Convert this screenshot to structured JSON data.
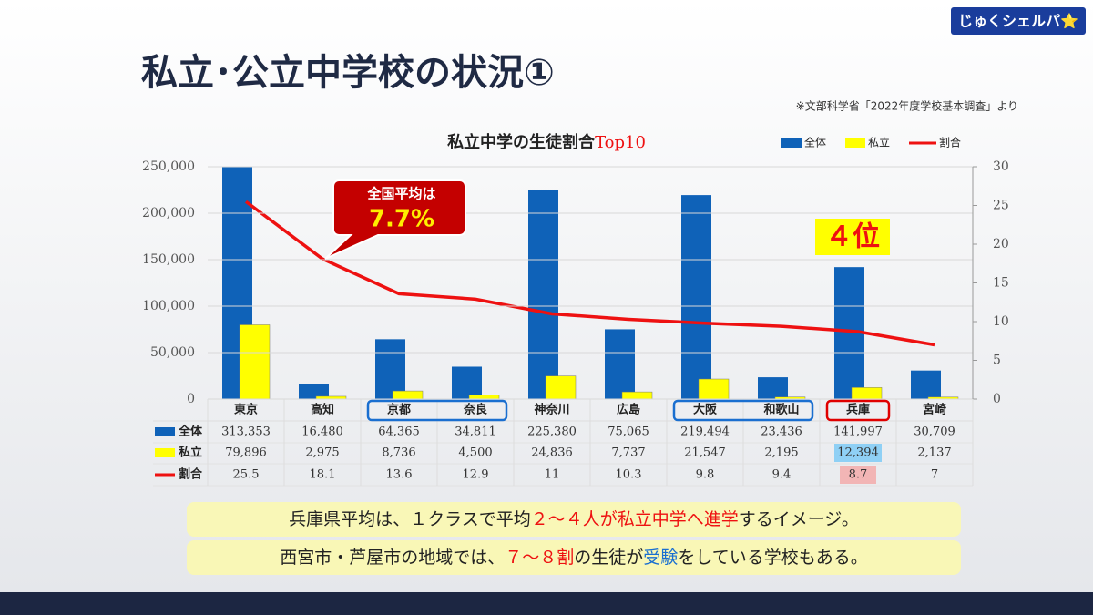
{
  "header": {
    "title": "私立･公立中学校の状況①",
    "logo": "じゅくシェルパ⭐",
    "source": "※文部科学省「2022年度学校基本調査」より"
  },
  "chart_data": {
    "type": "bar",
    "title": {
      "text": "私立中学の生徒割合",
      "highlight": "Top10"
    },
    "categories": [
      "東京",
      "高知",
      "京都",
      "奈良",
      "神奈川",
      "広島",
      "大阪",
      "和歌山",
      "兵庫",
      "宮崎"
    ],
    "series": [
      {
        "name": "全体",
        "color": "#0f62b8",
        "type": "bar",
        "values": [
          313353,
          16480,
          64365,
          34811,
          225380,
          75065,
          219494,
          23436,
          141997,
          30709
        ],
        "value_labels": [
          "313,353",
          "16,480",
          "64,365",
          "34,811",
          "225,380",
          "75,065",
          "219,494",
          "23,436",
          "141,997",
          "30,709"
        ]
      },
      {
        "name": "私立",
        "color": "#ffff00",
        "type": "bar",
        "values": [
          79896,
          2975,
          8736,
          4500,
          24836,
          7737,
          21547,
          2195,
          12394,
          2137
        ],
        "value_labels": [
          "79,896",
          "2,975",
          "8,736",
          "4,500",
          "24,836",
          "7,737",
          "21,547",
          "2,195",
          "12,394",
          "2,137"
        ]
      },
      {
        "name": "割合",
        "color": "#ee1111",
        "type": "line",
        "axis": "y2",
        "values": [
          25.5,
          18.1,
          13.6,
          12.9,
          11,
          10.3,
          9.8,
          9.4,
          8.7,
          7
        ]
      }
    ],
    "ylim": [
      0,
      250000
    ],
    "yticks": [
      0,
      {
        "value": 50000,
        "label": "50,000"
      },
      {
        "value": 100000,
        "label": "100,000"
      },
      {
        "value": 150000,
        "label": "150,000"
      },
      {
        "value": 200000,
        "label": "200,000"
      },
      {
        "value": 250000,
        "label": "250,000"
      }
    ],
    "y2lim": [
      0,
      30
    ],
    "y2ticks": [
      0,
      5,
      10,
      15,
      20,
      25,
      30
    ],
    "legend": "top-right",
    "grid": true,
    "annotations": {
      "callout": [
        "全国平均は",
        "7.7%"
      ],
      "rank": "４位"
    }
  },
  "notes": [
    [
      {
        "text": "兵庫県平均は、１クラスで平均",
        "color": "#222222"
      },
      {
        "text": "２～４人が私立中学へ進学",
        "color": "#ee1111"
      },
      {
        "text": "するイメージ。",
        "color": "#222222"
      }
    ],
    [
      {
        "text": "西宮市・芦屋市の地域では、",
        "color": "#222222"
      },
      {
        "text": "７～８割",
        "color": "#ee1111"
      },
      {
        "text": "の生徒が",
        "color": "#222222"
      },
      {
        "text": "受験",
        "color": "#1a6fd0"
      },
      {
        "text": "をしている学校もある。",
        "color": "#222222"
      }
    ]
  ]
}
